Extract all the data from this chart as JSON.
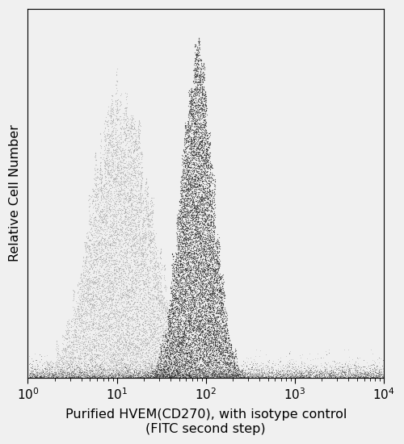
{
  "title": "",
  "xlabel": "Purified HVEM(CD270), with isotype control\n(FITC second step)",
  "ylabel": "Relative Cell Number",
  "background_color": "#f0f0f0",
  "isotype_color": "#999999",
  "sample_color": "#222222",
  "figsize": [
    5.0,
    5.5
  ],
  "dpi": 100,
  "xlabel_fontsize": 11.5,
  "ylabel_fontsize": 11.5
}
